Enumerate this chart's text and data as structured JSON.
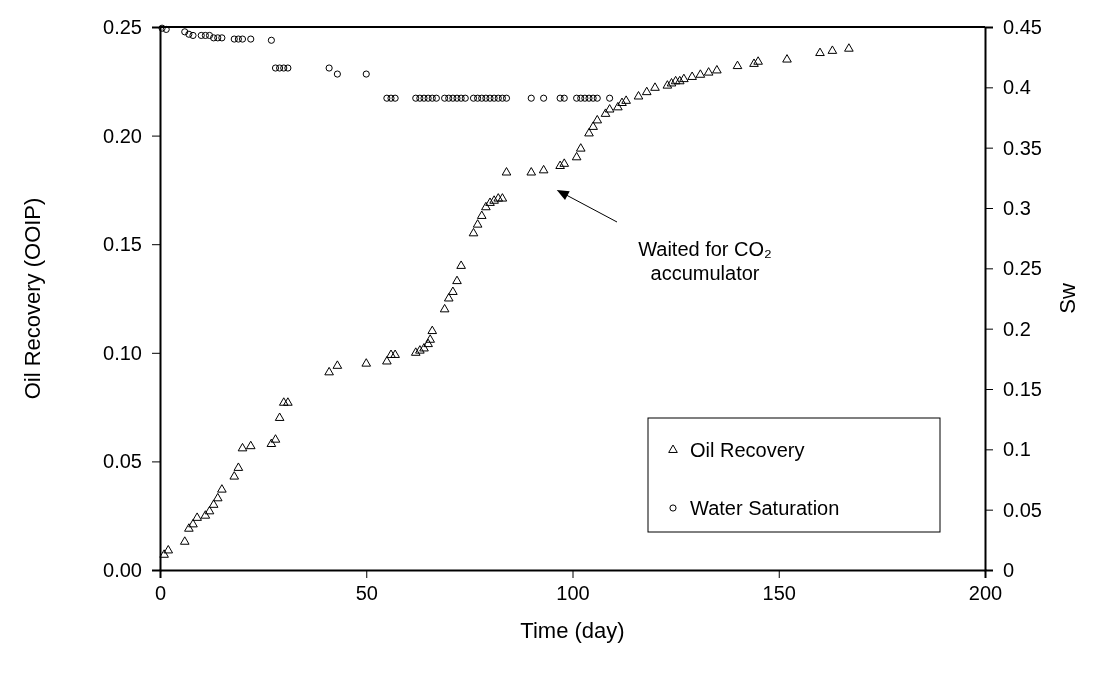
{
  "chart_data": {
    "type": "scatter",
    "xlabel": "Time (day)",
    "ylabel": "Oil Recovery (OOIP)",
    "y2label": "Sw",
    "xlim": [
      0,
      200
    ],
    "xticks": [
      0,
      50,
      100,
      150,
      200
    ],
    "ylim": [
      0,
      0.25
    ],
    "yticks": [
      {
        "value": 0,
        "label": "0.00"
      },
      {
        "value": 0.05,
        "label": "0.05"
      },
      {
        "value": 0.1,
        "label": "0.10"
      },
      {
        "value": 0.15,
        "label": "0.15"
      },
      {
        "value": 0.2,
        "label": "0.20"
      },
      {
        "value": 0.25,
        "label": "0.25"
      }
    ],
    "y2lim": [
      0,
      0.45
    ],
    "y2ticks": [
      0,
      0.05,
      {
        "value": 0.1,
        "label": "0.1"
      },
      0.15,
      {
        "value": 0.2,
        "label": "0.2"
      },
      0.25,
      {
        "value": 0.3,
        "label": "0.3"
      },
      0.35,
      {
        "value": 0.4,
        "label": "0.4"
      },
      0.45
    ],
    "grid": false,
    "legend": "bottom right",
    "annotations": [
      "Waited for CO₂\naccumulator"
    ],
    "series": [
      {
        "name": "Oil Recovery",
        "color": "#000000",
        "marker": "triangle",
        "x": [
          1,
          2,
          6,
          7,
          8,
          9,
          11,
          12,
          13,
          14,
          15,
          18,
          19,
          20,
          22,
          27,
          28,
          29,
          30,
          31,
          41,
          43,
          50,
          55,
          56,
          57,
          62,
          63,
          64,
          65,
          65.5,
          66,
          69,
          70,
          71,
          72,
          73,
          76,
          77,
          78,
          79,
          80,
          81,
          82,
          83,
          84,
          90,
          93,
          97,
          98,
          101,
          102,
          104,
          105,
          106,
          108,
          109,
          111,
          112,
          113,
          116,
          118,
          120,
          123,
          124,
          125,
          126,
          127,
          129,
          131,
          133,
          135,
          140,
          144,
          145,
          152,
          160,
          163,
          167
        ],
        "values": [
          0.007,
          0.009,
          0.013,
          0.019,
          0.021,
          0.024,
          0.025,
          0.027,
          0.03,
          0.033,
          0.037,
          0.043,
          0.047,
          0.056,
          0.057,
          0.058,
          0.06,
          0.07,
          0.077,
          0.077,
          0.091,
          0.094,
          0.095,
          0.096,
          0.099,
          0.099,
          0.1,
          0.101,
          0.102,
          0.104,
          0.106,
          0.11,
          0.12,
          0.125,
          0.128,
          0.133,
          0.14,
          0.155,
          0.159,
          0.163,
          0.167,
          0.169,
          0.17,
          0.171,
          0.171,
          0.183,
          0.183,
          0.184,
          0.186,
          0.187,
          0.19,
          0.194,
          0.201,
          0.204,
          0.207,
          0.21,
          0.212,
          0.213,
          0.215,
          0.216,
          0.218,
          0.22,
          0.222,
          0.223,
          0.224,
          0.225,
          0.225,
          0.226,
          0.227,
          0.228,
          0.229,
          0.23,
          0.232,
          0.233,
          0.234,
          0.235,
          0.238,
          0.239,
          0.24
        ]
      },
      {
        "name": "Water Saturation",
        "color": "#000000",
        "marker": "circle",
        "axis": "y2",
        "x": [
          0.5,
          1.5,
          6,
          7,
          8,
          10,
          11,
          12,
          13,
          14,
          15,
          18,
          19,
          20,
          22,
          27,
          28,
          29,
          30,
          31,
          41,
          43,
          50,
          55,
          56,
          57,
          62,
          63,
          64,
          65,
          66,
          67,
          69,
          70,
          71,
          72,
          73,
          74,
          76,
          77,
          78,
          79,
          80,
          81,
          82,
          83,
          84,
          90,
          93,
          97,
          98,
          101,
          102,
          103,
          104,
          105,
          106,
          109
        ],
        "values": [
          0.449,
          0.448,
          0.446,
          0.444,
          0.443,
          0.443,
          0.443,
          0.443,
          0.441,
          0.441,
          0.441,
          0.44,
          0.44,
          0.44,
          0.44,
          0.439,
          0.416,
          0.416,
          0.416,
          0.416,
          0.416,
          0.411,
          0.411,
          0.391,
          0.391,
          0.391,
          0.391,
          0.391,
          0.391,
          0.391,
          0.391,
          0.391,
          0.391,
          0.391,
          0.391,
          0.391,
          0.391,
          0.391,
          0.391,
          0.391,
          0.391,
          0.391,
          0.391,
          0.391,
          0.391,
          0.391,
          0.391,
          0.391,
          0.391,
          0.391,
          0.391,
          0.391,
          0.391,
          0.391,
          0.391,
          0.391,
          0.391,
          0.391
        ]
      }
    ]
  }
}
